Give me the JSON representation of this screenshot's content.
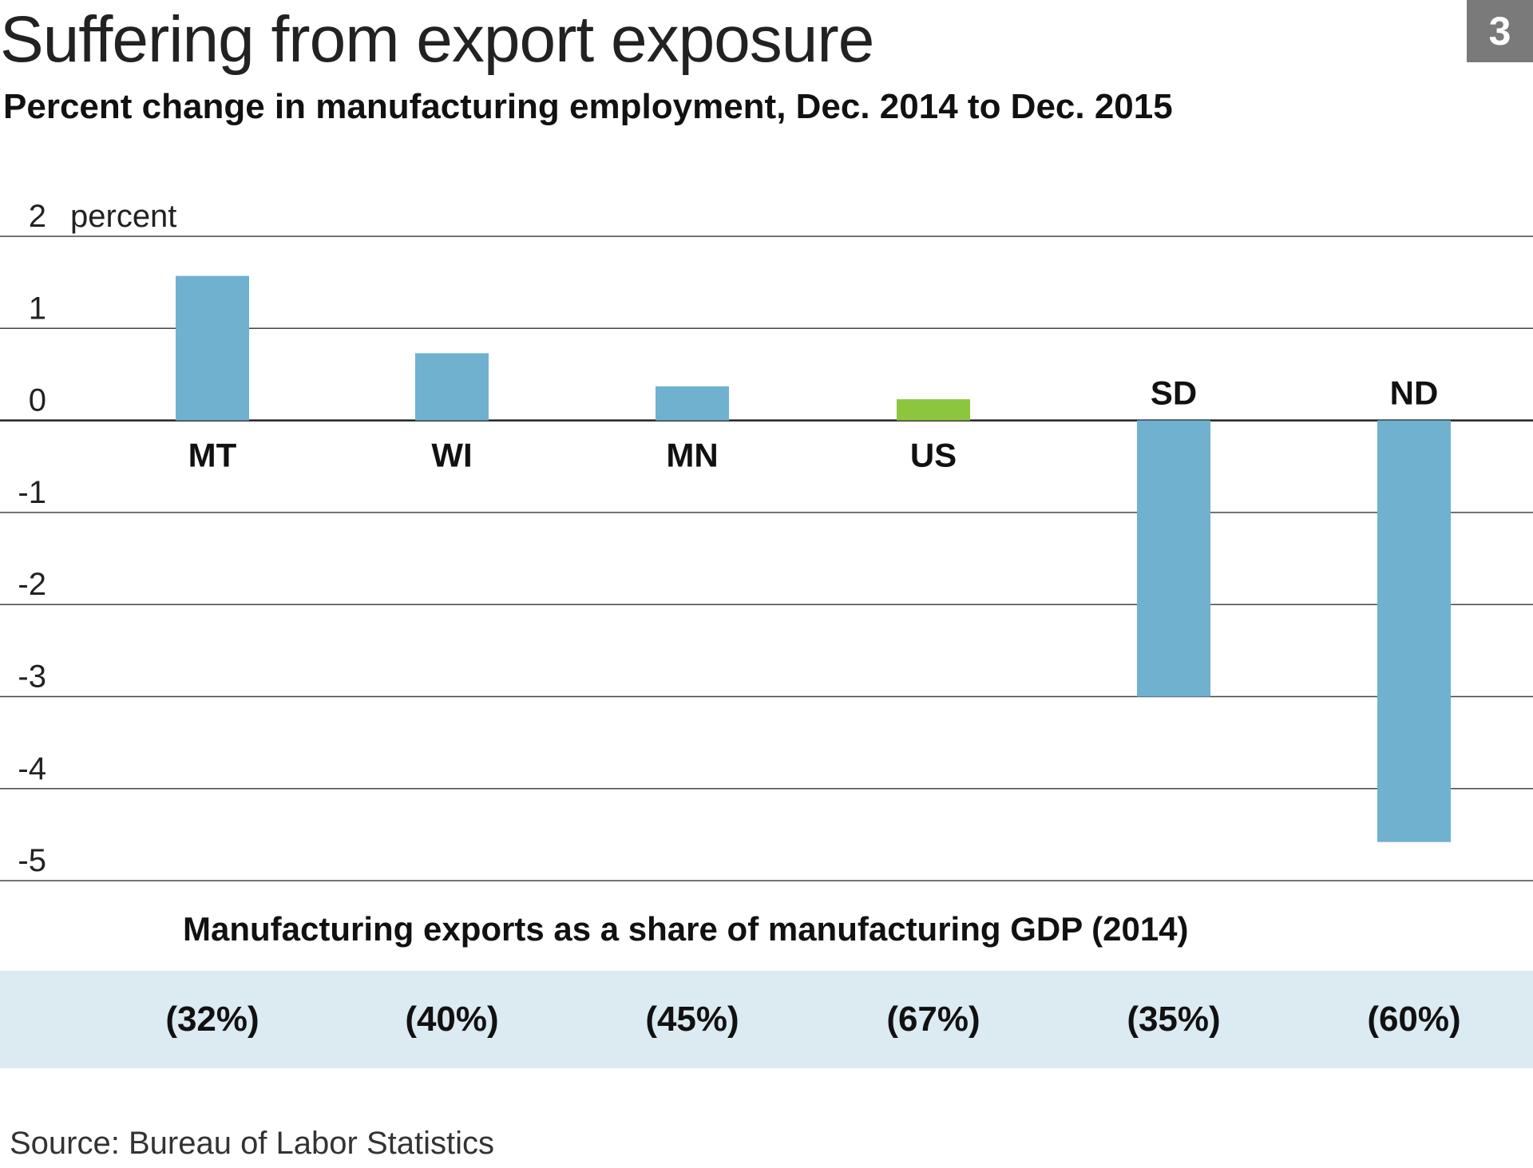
{
  "header": {
    "title": "Suffering from export exposure",
    "subtitle": "Percent change in manufacturing employment, Dec. 2014 to Dec. 2015",
    "badge": "3"
  },
  "chart_data": {
    "type": "bar",
    "title": "Suffering from export exposure",
    "subtitle": "Percent change in manufacturing employment, Dec. 2014 to Dec. 2015",
    "categories": [
      "MT",
      "WI",
      "MN",
      "US",
      "SD",
      "ND"
    ],
    "values": [
      1.57,
      0.73,
      0.37,
      0.23,
      -3.0,
      -4.58
    ],
    "bar_colors": [
      "#6fb1cf",
      "#6fb1cf",
      "#6fb1cf",
      "#8cc63f",
      "#6fb1cf",
      "#6fb1cf"
    ],
    "unit_label": "percent",
    "y_ticks": [
      "2",
      "1",
      "0",
      "-1",
      "-2",
      "-3",
      "-4",
      "-5"
    ],
    "ylim": [
      -5,
      2
    ],
    "grid": true,
    "legend": "none"
  },
  "exports": {
    "heading": "Manufacturing exports as a share of manufacturing GDP (2014)",
    "values": [
      "(32%)",
      "(40%)",
      "(45%)",
      "(67%)",
      "(35%)",
      "(60%)"
    ]
  },
  "source": "Source: Bureau of Labor Statistics",
  "colors": {
    "bar": "#6fb1cf",
    "us_bar": "#8cc63f",
    "band": "#dceaf1",
    "badge": "#7a7a7a"
  }
}
